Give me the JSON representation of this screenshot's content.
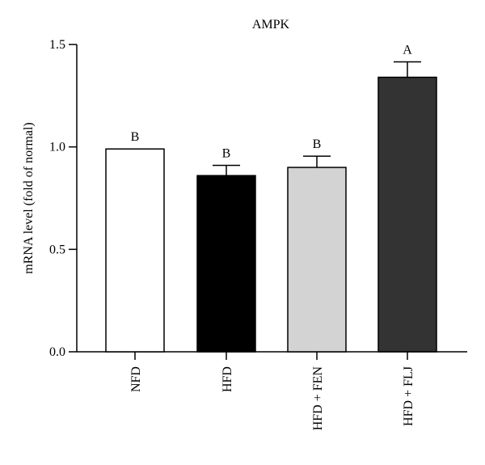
{
  "chart_data": {
    "type": "bar",
    "title": "AMPK",
    "xlabel": "",
    "ylabel": "mRNA level (fold of normal)",
    "ylim": [
      0,
      1.5
    ],
    "yticks": [
      "0.0",
      "0.5",
      "1.0",
      "1.5"
    ],
    "categories": [
      "NFD",
      "HFD",
      "HFD + FEN",
      "HFD + FLJ"
    ],
    "values": [
      0.99,
      0.86,
      0.9,
      1.34
    ],
    "errors": [
      0.0,
      0.05,
      0.055,
      0.075
    ],
    "significance": [
      "B",
      "B",
      "B",
      "A"
    ],
    "bar_colors": [
      "#ffffff",
      "#000000",
      "#d3d3d3",
      "#333333"
    ],
    "grid": false,
    "legend": "none"
  }
}
